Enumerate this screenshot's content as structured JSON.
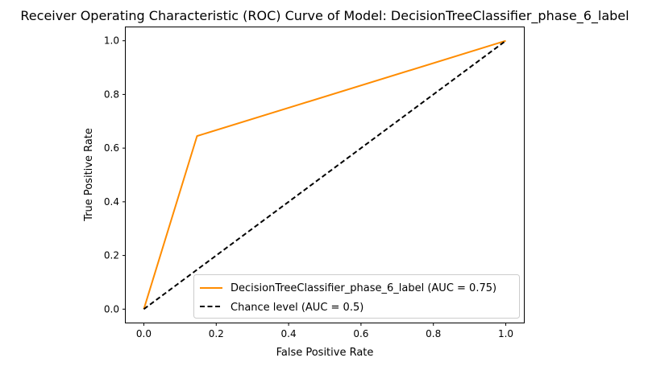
{
  "chart_data": {
    "type": "line",
    "title": "Receiver Operating Characteristic (ROC) Curve of Model: DecisionTreeClassifier_phase_6_label",
    "xlabel": "False Positive Rate",
    "ylabel": "True Positive Rate",
    "xlim": [
      -0.05,
      1.05
    ],
    "ylim": [
      -0.05,
      1.05
    ],
    "x_ticks": [
      "0.0",
      "0.2",
      "0.4",
      "0.6",
      "0.8",
      "1.0"
    ],
    "y_ticks": [
      "0.0",
      "0.2",
      "0.4",
      "0.6",
      "0.8",
      "1.0"
    ],
    "grid": false,
    "legend_position": "lower-right",
    "series": [
      {
        "name": "DecisionTreeClassifier_phase_6_label (AUC = 0.75)",
        "color": "#ff8c00",
        "style": "solid",
        "x": [
          0.0,
          0.147,
          1.0
        ],
        "y": [
          0.0,
          0.645,
          1.0
        ]
      },
      {
        "name": "Chance level (AUC = 0.5)",
        "color": "#000000",
        "style": "dashed",
        "x": [
          0.0,
          1.0
        ],
        "y": [
          0.0,
          1.0
        ]
      }
    ]
  }
}
